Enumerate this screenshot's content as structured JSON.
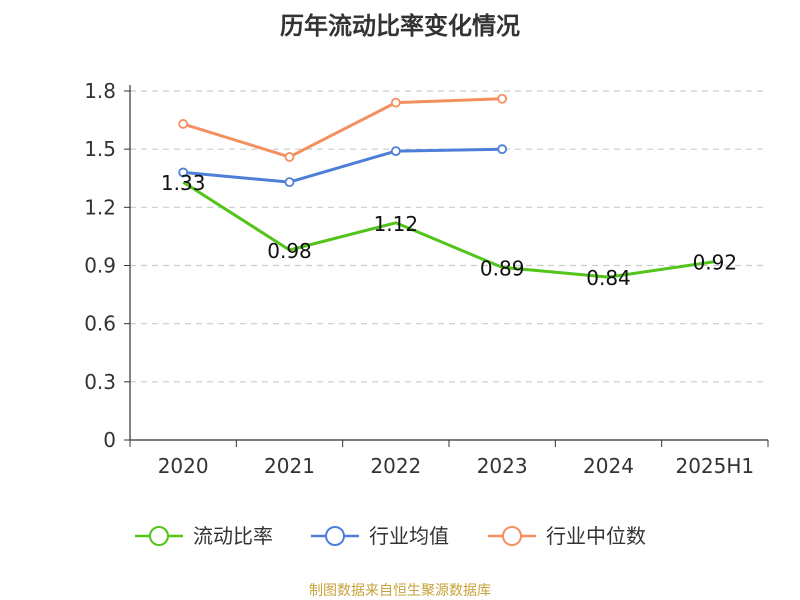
{
  "chart_data": {
    "type": "line",
    "title": "历年流动比率变化情况",
    "categories": [
      "2020",
      "2021",
      "2022",
      "2023",
      "2024",
      "2025H1"
    ],
    "ylim": [
      0,
      1.8
    ],
    "yticks": [
      "0",
      "0.3",
      "0.6",
      "0.9",
      "1.2",
      "1.5",
      "1.8"
    ],
    "grid": true,
    "legend_position": "bottom",
    "series": [
      {
        "name": "流动比率",
        "color": "#52c41a",
        "values": [
          1.33,
          0.98,
          1.12,
          0.89,
          0.84,
          0.92
        ],
        "labels": [
          "1.33",
          "0.98",
          "1.12",
          "0.89",
          "0.84",
          "0.92"
        ]
      },
      {
        "name": "行业均值",
        "color": "#4e7fd8",
        "values": [
          1.38,
          1.33,
          1.49,
          1.5,
          null,
          null
        ]
      },
      {
        "name": "行业中位数",
        "color": "#f39060",
        "values": [
          1.63,
          1.46,
          1.74,
          1.76,
          null,
          null
        ]
      }
    ]
  },
  "source": "制图数据来自恒生聚源数据库"
}
